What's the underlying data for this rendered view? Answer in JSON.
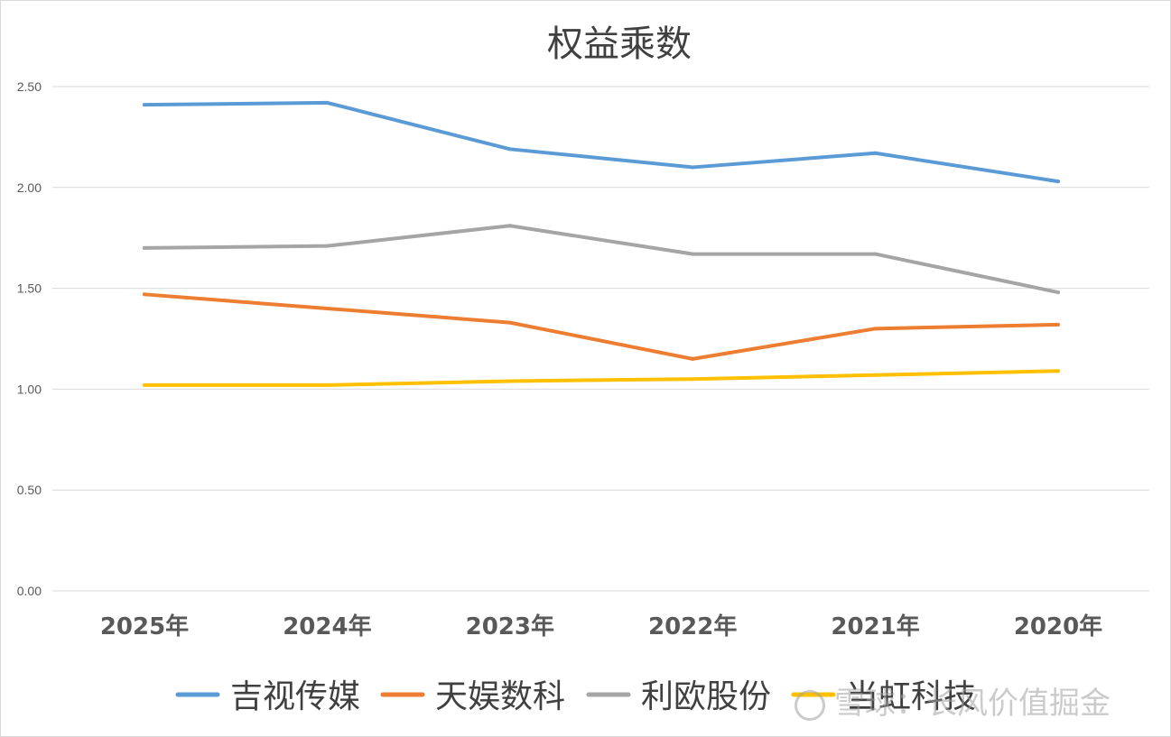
{
  "watermark": "雪球：长风价值掘金",
  "chart_data": {
    "type": "line",
    "title": "权益乘数",
    "categories": [
      "2025年",
      "2024年",
      "2023年",
      "2022年",
      "2021年",
      "2020年"
    ],
    "yticks": [
      "0.00",
      "0.50",
      "1.00",
      "1.50",
      "2.00",
      "2.50"
    ],
    "ylim": [
      0,
      2.5
    ],
    "grid": true,
    "legend_position": "bottom",
    "series": [
      {
        "name": "吉视传媒",
        "color": "#5b9bd5",
        "values": [
          2.41,
          2.42,
          2.19,
          2.1,
          2.17,
          2.03
        ]
      },
      {
        "name": "天娱数科",
        "color": "#ed7d31",
        "values": [
          1.47,
          1.4,
          1.33,
          1.15,
          1.3,
          1.32
        ]
      },
      {
        "name": "利欧股份",
        "color": "#a5a5a5",
        "values": [
          1.7,
          1.71,
          1.81,
          1.67,
          1.67,
          1.48
        ]
      },
      {
        "name": "当虹科技",
        "color": "#ffc000",
        "values": [
          1.02,
          1.02,
          1.04,
          1.05,
          1.07,
          1.09
        ]
      }
    ]
  }
}
